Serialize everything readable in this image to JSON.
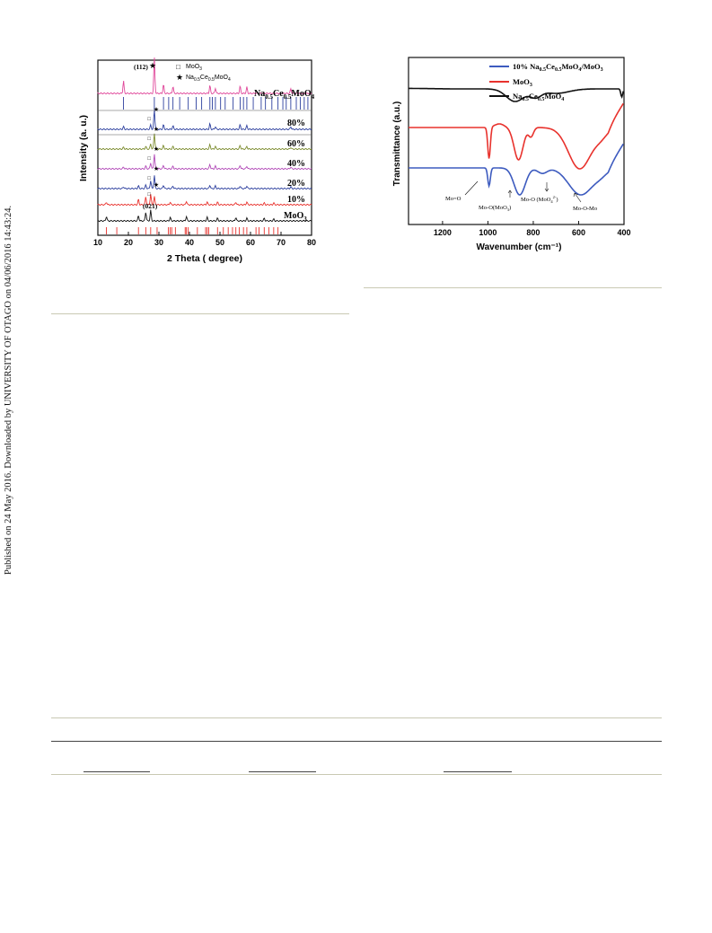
{
  "side_note": "Published on 24 May 2016. Downloaded by UNIVERSITY OF OTAGO on 04/06/2016 14:43:24.",
  "colors": {
    "black": "#111111",
    "red": "#e8322d",
    "blue": "#3d5bbf",
    "pink": "#e0479a",
    "olive": "#7c8c2e",
    "magenta": "#b24ab8",
    "navy": "#2c3f9e",
    "rule": "#c9c9b3"
  },
  "chart_data": [
    {
      "type": "line",
      "xlabel": "2 Theta ( degree)",
      "ylabel": "Intensity (a. u.)",
      "xlim": [
        10,
        80
      ],
      "xticks": [
        "10",
        "20",
        "30",
        "40",
        "50",
        "60",
        "70",
        "80"
      ],
      "legend": [
        "MoO3",
        "Na0.5Ce0.5MoO4"
      ],
      "series": [
        {
          "name": "Na0.5Ce0.5MoO4"
        },
        {
          "name": "80%"
        },
        {
          "name": "60%"
        },
        {
          "name": "40%"
        },
        {
          "name": "20%"
        },
        {
          "name": "10%"
        },
        {
          "name": "MoO3"
        }
      ],
      "peaks_top": [
        18.4,
        28.5,
        31.5,
        34.6,
        46.7,
        48.5,
        56.6,
        58.8,
        73.2
      ],
      "peaks_moo3": [
        12.8,
        23.3,
        25.7,
        27.3,
        33.7,
        39.0,
        45.8,
        49.2,
        55.2,
        58.8,
        64.5,
        67.6
      ],
      "annotations": [
        "(112)",
        "(021)"
      ],
      "ref_ticks_top": [
        18.4,
        28.5,
        31.5,
        33.2,
        34.6,
        36.8,
        39.6,
        42.2,
        44.0,
        46.7,
        47.5,
        48.5,
        50.2,
        51.7,
        54.3,
        56.6,
        57.7,
        58.8,
        60.9,
        63.5,
        64.9,
        67.0,
        69.0,
        70.6,
        71.7,
        73.2,
        75.0,
        76.3,
        77.6,
        78.8
      ],
      "ref_ticks_bottom": [
        12.8,
        16.2,
        23.3,
        25.7,
        27.3,
        29.4,
        33.1,
        33.7,
        34.2,
        35.4,
        38.6,
        39.0,
        39.6,
        42.6,
        45.3,
        45.8,
        46.3,
        49.2,
        51.1,
        52.7,
        54.1,
        55.2,
        56.3,
        57.7,
        58.8,
        61.8,
        62.8,
        64.5,
        66.0,
        67.6,
        69.0
      ]
    },
    {
      "type": "line",
      "xlabel": "Wavenumber (cm⁻¹)",
      "ylabel": "Transmittance (a.u.)",
      "xlim": [
        1350,
        400
      ],
      "xticks": [
        "1200",
        "1000",
        "800",
        "600",
        "400"
      ],
      "legend": [
        "10% Na0.5Ce0.5MoO4/MoO3",
        "MoO3",
        "Na0.5Ce0.5MoO4"
      ],
      "annotations": [
        "Mo=O",
        "Mo-O(MoO3)",
        "Mo-O (MoO4 2-)",
        "Mo-O-Mo"
      ]
    }
  ]
}
